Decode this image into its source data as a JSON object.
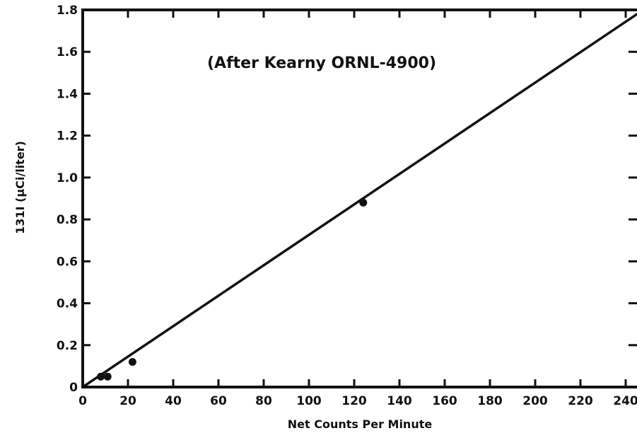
{
  "chart_data": {
    "type": "scatter",
    "annotation": "(After Kearny ORNL-4900)",
    "xlabel": "Net Counts Per Minute",
    "ylabel": "131I (µCi/liter)",
    "xlim": [
      0,
      245
    ],
    "ylim": [
      0,
      1.8
    ],
    "x_ticks": [
      "0",
      "20",
      "40",
      "60",
      "80",
      "100",
      "120",
      "140",
      "160",
      "180",
      "200",
      "220",
      "240"
    ],
    "y_ticks": [
      "0",
      "0.2",
      "0.4",
      "0.6",
      "0.8",
      "1.0",
      "1.2",
      "1.4",
      "1.6",
      "1.8"
    ],
    "grid": false,
    "points": [
      {
        "x": 8,
        "y": 0.05
      },
      {
        "x": 11,
        "y": 0.05
      },
      {
        "x": 22,
        "y": 0.12
      },
      {
        "x": 124,
        "y": 0.88
      }
    ],
    "fit_line": [
      {
        "x": 0,
        "y": 0
      },
      {
        "x": 245,
        "y": 1.78
      }
    ],
    "colors": {
      "ink": "#111111",
      "background": "#ffffff"
    }
  }
}
